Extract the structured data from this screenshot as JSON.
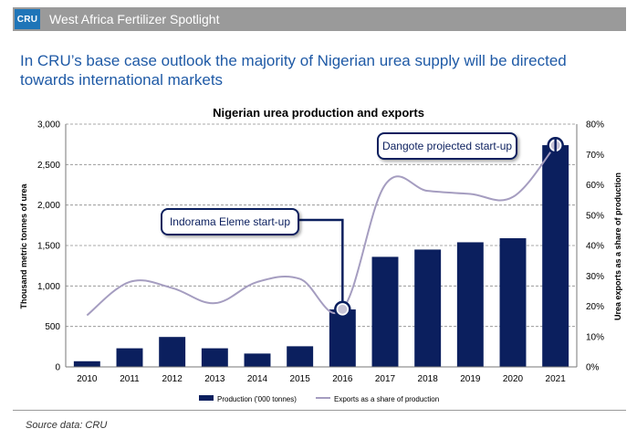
{
  "header": {
    "logo_text": "CRU",
    "banner_title": "West Africa Fertilizer Spotlight"
  },
  "headline": "In CRU’s base case outlook the majority of Nigerian urea supply will be directed towards international markets",
  "source": "Source data: CRU",
  "annotations": {
    "indorama": "Indorama Eleme start-up",
    "dangote": "Dangote projected start-up"
  },
  "colors": {
    "bar": "#0b1f5e",
    "line": "#a59dc0",
    "headline": "#1f5aa6",
    "banner": "#9a9a9a",
    "logo": "#1f75b8"
  },
  "chart_data": {
    "type": "bar",
    "title": "Nigerian urea production and exports",
    "ylabel": "Thousand metric tonnes of urea",
    "y2label": "Urea exports as a share of production",
    "categories": [
      "2010",
      "2011",
      "2012",
      "2013",
      "2014",
      "2015",
      "2016",
      "2017",
      "2018",
      "2019",
      "2020",
      "2021"
    ],
    "ylim": [
      0,
      3000
    ],
    "y2lim": [
      0,
      0.8
    ],
    "yticks": [
      "0",
      "500",
      "1,000",
      "1,500",
      "2,000",
      "2,500",
      "3,000"
    ],
    "y2ticks": [
      "0%",
      "10%",
      "20%",
      "30%",
      "40%",
      "50%",
      "60%",
      "70%",
      "80%"
    ],
    "grid": true,
    "legend_position": "bottom",
    "series": [
      {
        "name": "Production ('000 tonnes)",
        "kind": "bar",
        "axis": "left",
        "values": [
          70,
          230,
          370,
          230,
          165,
          255,
          710,
          1360,
          1450,
          1540,
          1590,
          2740
        ]
      },
      {
        "name": "Exports as a share of production",
        "kind": "line",
        "axis": "right",
        "values": [
          0.17,
          0.28,
          0.26,
          0.21,
          0.28,
          0.29,
          0.19,
          0.6,
          0.58,
          0.57,
          0.56,
          0.73
        ]
      }
    ]
  }
}
